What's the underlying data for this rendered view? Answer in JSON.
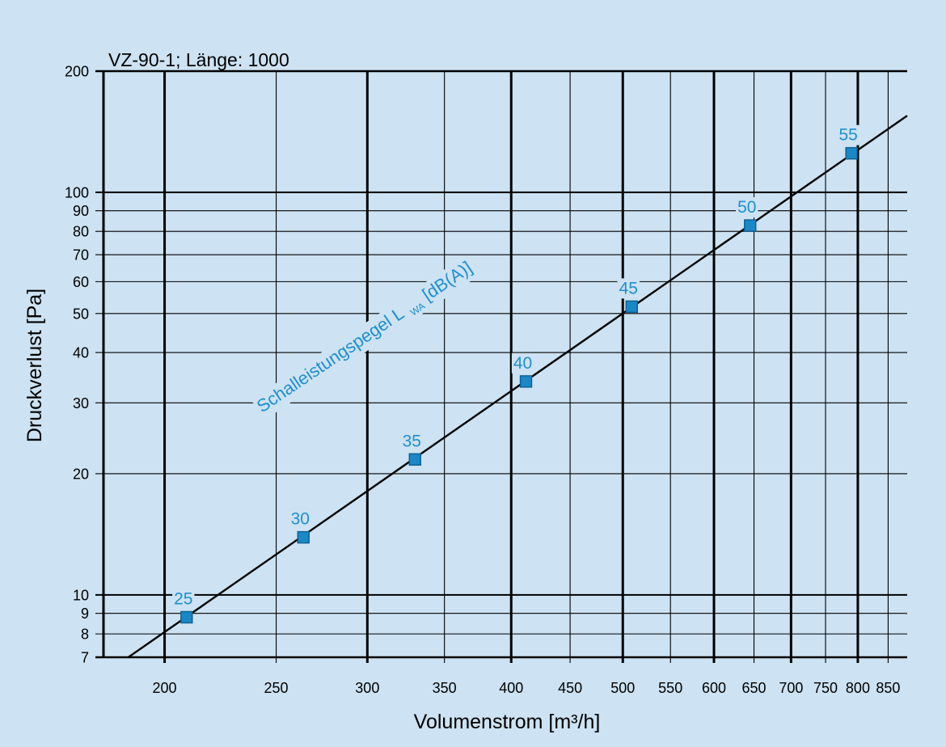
{
  "chart_data": {
    "type": "scatter",
    "title": "VZ-90-1; Länge: 1000",
    "xlabel": "Volumenstrom [m³/h]",
    "ylabel": "Druckverlust [Pa]",
    "xscale": "log",
    "yscale": "log",
    "xlim": [
      177,
      883
    ],
    "ylim": [
      7,
      200
    ],
    "xticks": [
      200,
      250,
      300,
      350,
      400,
      450,
      500,
      550,
      600,
      650,
      700,
      750,
      800,
      850
    ],
    "yticks": [
      200,
      100,
      90,
      80,
      70,
      60,
      50,
      40,
      30,
      20,
      10,
      9,
      8,
      7
    ],
    "grid": true,
    "points": [
      {
        "x": 209,
        "y": 8.8,
        "label": "25"
      },
      {
        "x": 264,
        "y": 13.9,
        "label": "30"
      },
      {
        "x": 330,
        "y": 21.7,
        "label": "35"
      },
      {
        "x": 412,
        "y": 33.9,
        "label": "40"
      },
      {
        "x": 509,
        "y": 52,
        "label": "45"
      },
      {
        "x": 645,
        "y": 82.7,
        "label": "50"
      },
      {
        "x": 790,
        "y": 125,
        "label": "55"
      }
    ],
    "line": {
      "x": [
        186,
        883
      ],
      "y": [
        7,
        155
      ]
    },
    "annotation": {
      "text": "Schalleistungspegel L",
      "subscript": "WA",
      "suffix": "[dB(A)]"
    }
  },
  "colors": {
    "background": "#cde2f2",
    "accent": "#1f8fcc",
    "marker": "#1b87c4",
    "marker_edge": "#0c5f92"
  }
}
